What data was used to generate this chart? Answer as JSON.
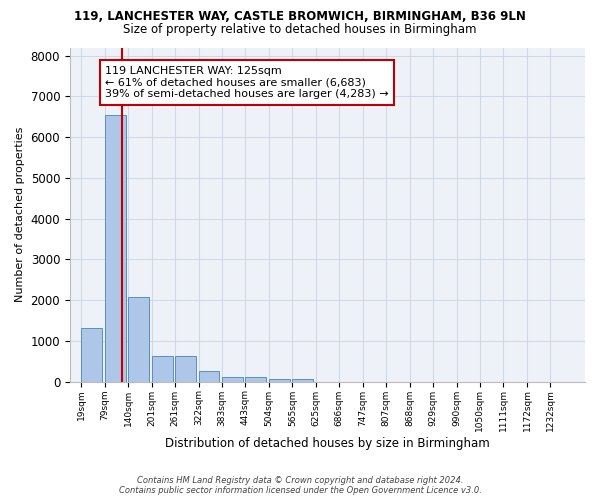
{
  "title_line1": "119, LANCHESTER WAY, CASTLE BROMWICH, BIRMINGHAM, B36 9LN",
  "title_line2": "Size of property relative to detached houses in Birmingham",
  "xlabel": "Distribution of detached houses by size in Birmingham",
  "ylabel": "Number of detached properties",
  "annotation_line1": "119 LANCHESTER WAY: 125sqm",
  "annotation_line2": "← 61% of detached houses are smaller (6,683)",
  "annotation_line3": "39% of semi-detached houses are larger (4,283) →",
  "bar_bins": [
    19,
    79,
    140,
    201,
    261,
    322,
    383,
    443,
    504,
    565,
    625,
    686,
    747,
    807,
    868,
    929,
    990,
    1050,
    1111,
    1172,
    1232
  ],
  "bar_values": [
    1320,
    6550,
    2080,
    640,
    630,
    250,
    120,
    110,
    60,
    65,
    0,
    0,
    0,
    0,
    0,
    0,
    0,
    0,
    0,
    0
  ],
  "bar_color": "#aec6e8",
  "bar_edge_color": "#5a8fc0",
  "highlight_color": "#c00000",
  "vline_x": 125,
  "ylim": [
    0,
    8200
  ],
  "yticks": [
    0,
    1000,
    2000,
    3000,
    4000,
    5000,
    6000,
    7000,
    8000
  ],
  "grid_color": "#d0d8e8",
  "background_color": "#eef2f8",
  "footnote_line1": "Contains HM Land Registry data © Crown copyright and database right 2024.",
  "footnote_line2": "Contains public sector information licensed under the Open Government Licence v3.0."
}
